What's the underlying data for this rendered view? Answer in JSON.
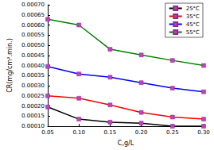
{
  "chart_data": {
    "type": "line",
    "x_label": "C,g/L",
    "y_label": "CR(mg/cm².min.)",
    "x": [
      0.05,
      0.1,
      0.15,
      0.2,
      0.25,
      0.3
    ],
    "xlim": [
      0.05,
      0.3
    ],
    "xticks": [
      {
        "value": 0.05,
        "label": "0.05"
      },
      {
        "value": 0.1,
        "label": "0.10"
      },
      {
        "value": 0.15,
        "label": "0.15"
      },
      {
        "value": 0.2,
        "label": "0.20"
      },
      {
        "value": 0.25,
        "label": "0.25"
      },
      {
        "value": 0.3,
        "label": "0.30"
      }
    ],
    "ylim": [
      0.0001,
      0.0007
    ],
    "yticks": [
      {
        "value": 0.0001,
        "label": "0.00010"
      },
      {
        "value": 0.00015,
        "label": "0.00015"
      },
      {
        "value": 0.0002,
        "label": "0.00020"
      },
      {
        "value": 0.00025,
        "label": "0.00025"
      },
      {
        "value": 0.0003,
        "label": "0.00030"
      },
      {
        "value": 0.00035,
        "label": "0.00035"
      },
      {
        "value": 0.0004,
        "label": "0.00040"
      },
      {
        "value": 0.00045,
        "label": "0.00045"
      },
      {
        "value": 0.0005,
        "label": "0.00050"
      },
      {
        "value": 0.00055,
        "label": "0.00055"
      },
      {
        "value": 0.0006,
        "label": "0.00060"
      },
      {
        "value": 0.00065,
        "label": "0.00065"
      },
      {
        "value": 0.0007,
        "label": "0.00070"
      }
    ],
    "grid": false,
    "legend": "top-right",
    "marker": "square",
    "series": [
      {
        "name": "25°C",
        "color": "#000000",
        "values": [
          0.000195,
          0.000135,
          0.00012,
          0.000115,
          0.0001,
          0.0001
        ]
      },
      {
        "name": "35°C",
        "color": "#ff0000",
        "values": [
          0.00025,
          0.000238,
          0.000205,
          0.000168,
          0.000145,
          0.000135
        ]
      },
      {
        "name": "45°C",
        "color": "#0000ff",
        "values": [
          0.000395,
          0.000358,
          0.000342,
          0.000315,
          0.000288,
          0.00027
        ]
      },
      {
        "name": "55°C",
        "color": "#008000",
        "values": [
          0.000628,
          0.0006,
          0.00048,
          0.000452,
          0.000425,
          0.0004
        ]
      }
    ]
  }
}
